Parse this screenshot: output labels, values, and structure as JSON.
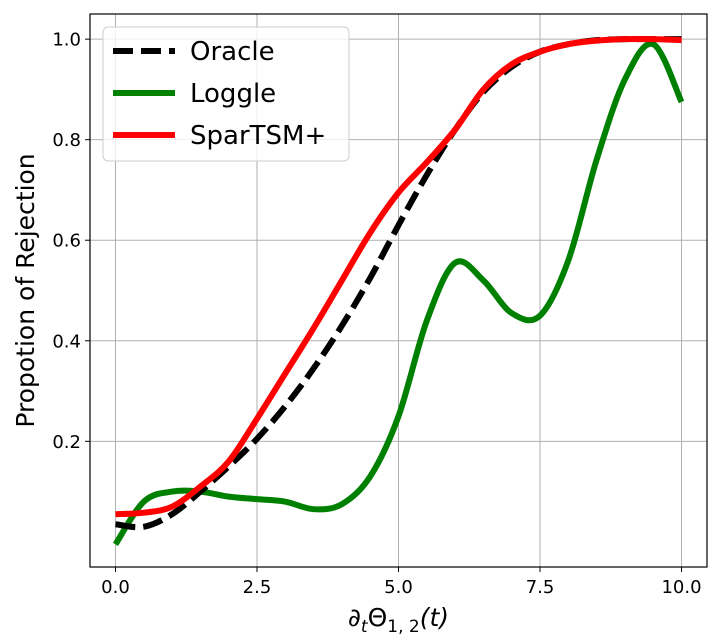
{
  "chart_data": {
    "type": "line",
    "title": "",
    "xlabel": "∂tΘ1,2(t)",
    "xlabel_parts": {
      "base": "∂",
      "base_sub": "t",
      "symbol": "Θ",
      "symbol_sub": "1, 2",
      "suffix": "(t)"
    },
    "ylabel": "Propotion of Rejection",
    "xlim": [
      -0.45,
      10.45
    ],
    "ylim": [
      -0.05,
      1.05
    ],
    "xticks": [
      0,
      2.5,
      5,
      7.5,
      10
    ],
    "xtick_labels": [
      "0.0",
      "2.5",
      "5.0",
      "7.5",
      "10.0"
    ],
    "yticks": [
      0.2,
      0.4,
      0.6,
      0.8,
      1.0
    ],
    "ytick_labels": [
      "0.2",
      "0.4",
      "0.6",
      "0.8",
      "1.0"
    ],
    "grid": true,
    "legend_position": "top-left",
    "series": [
      {
        "name": "Oracle",
        "color": "#000000",
        "style": "dashed",
        "x": [
          0,
          0.5,
          1,
          1.5,
          2,
          2.5,
          3,
          3.5,
          4,
          4.5,
          5,
          5.5,
          6,
          6.5,
          7,
          7.5,
          8,
          8.5,
          9,
          9.5,
          10
        ],
        "y": [
          0.035,
          0.03,
          0.055,
          0.1,
          0.15,
          0.205,
          0.27,
          0.345,
          0.43,
          0.525,
          0.63,
          0.73,
          0.82,
          0.895,
          0.945,
          0.975,
          0.99,
          0.998,
          1.0,
          1.0,
          1.0
        ]
      },
      {
        "name": "Loggle",
        "color": "#008000",
        "style": "solid",
        "x": [
          0,
          0.5,
          1,
          1.5,
          2,
          2.5,
          3,
          3.5,
          4,
          4.5,
          5,
          5.5,
          6,
          6.5,
          7,
          7.5,
          8,
          8.5,
          9,
          9.5,
          10
        ],
        "y": [
          -0.005,
          0.08,
          0.1,
          0.1,
          0.09,
          0.085,
          0.08,
          0.065,
          0.075,
          0.13,
          0.25,
          0.44,
          0.555,
          0.52,
          0.455,
          0.45,
          0.56,
          0.76,
          0.92,
          0.99,
          0.875
        ]
      },
      {
        "name": "SparTSM+",
        "color": "#ff0000",
        "style": "solid",
        "x": [
          0,
          0.5,
          1,
          1.5,
          2,
          2.5,
          3,
          3.5,
          4,
          4.5,
          5,
          5.5,
          6,
          6.5,
          7,
          7.5,
          8,
          8.5,
          9,
          9.5,
          10
        ],
        "y": [
          0.055,
          0.058,
          0.07,
          0.11,
          0.16,
          0.245,
          0.335,
          0.425,
          0.52,
          0.615,
          0.695,
          0.755,
          0.82,
          0.9,
          0.95,
          0.975,
          0.99,
          0.997,
          1.0,
          1.0,
          0.998
        ]
      }
    ]
  }
}
